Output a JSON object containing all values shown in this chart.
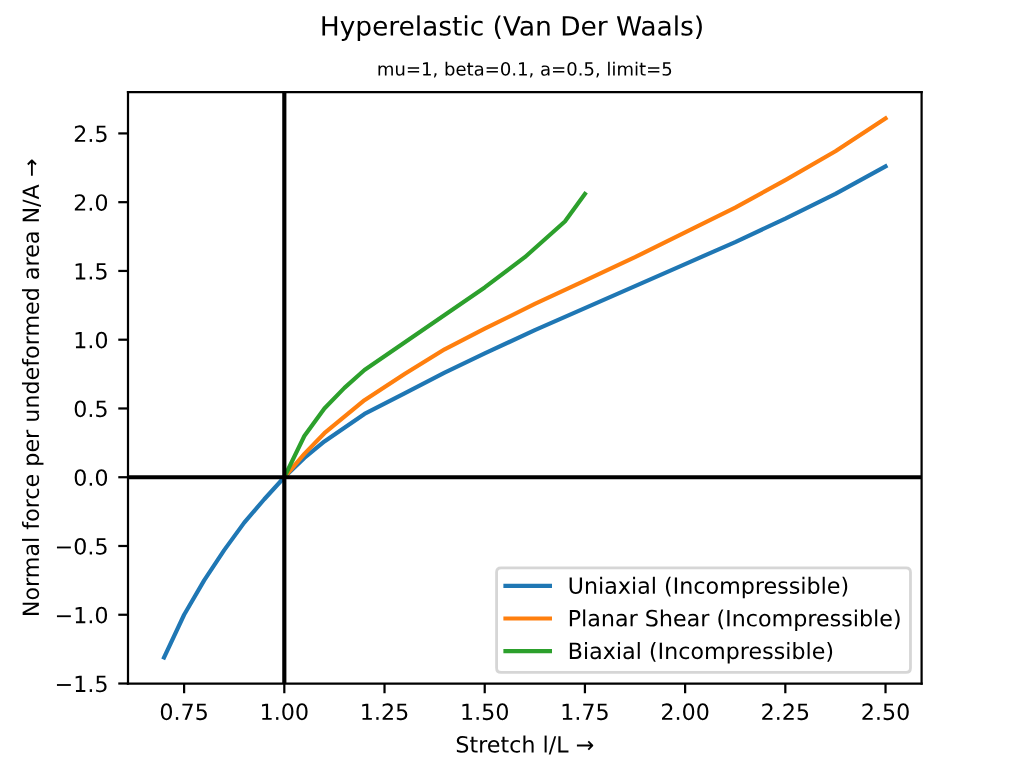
{
  "chart_data": {
    "type": "line",
    "title": "Hyperelastic (Van Der Waals)",
    "subtitle": "mu=1, beta=0.1, a=0.5, limit=5",
    "xlabel": "Stretch l/L →",
    "ylabel": "Normal force per undeformed area N/A →",
    "series": [
      {
        "name": "Uniaxial (Incompressible)",
        "color": "#1f77b4",
        "x": [
          0.7,
          0.75,
          0.8,
          0.85,
          0.9,
          0.95,
          1.0,
          1.05,
          1.1,
          1.2,
          1.3,
          1.4,
          1.5,
          1.625,
          1.75,
          1.875,
          2.0,
          2.125,
          2.25,
          2.375,
          2.5
        ],
        "values": [
          -1.31,
          -1.0,
          -0.75,
          -0.53,
          -0.33,
          -0.16,
          0,
          0.14,
          0.26,
          0.46,
          0.61,
          0.76,
          0.9,
          1.07,
          1.23,
          1.39,
          1.55,
          1.71,
          1.88,
          2.06,
          2.26
        ]
      },
      {
        "name": "Planar Shear (Incompressible)",
        "color": "#ff7f0e",
        "x": [
          1.0,
          1.05,
          1.1,
          1.2,
          1.3,
          1.4,
          1.5,
          1.625,
          1.75,
          1.875,
          2.0,
          2.125,
          2.25,
          2.375,
          2.5
        ],
        "values": [
          0,
          0.17,
          0.32,
          0.56,
          0.75,
          0.93,
          1.08,
          1.26,
          1.43,
          1.6,
          1.78,
          1.96,
          2.16,
          2.37,
          2.61
        ]
      },
      {
        "name": "Biaxial (Incompressible)",
        "color": "#2ca02c",
        "x": [
          1.0,
          1.05,
          1.1,
          1.15,
          1.2,
          1.3,
          1.4,
          1.5,
          1.6,
          1.7,
          1.75
        ],
        "values": [
          0,
          0.3,
          0.5,
          0.65,
          0.78,
          0.98,
          1.18,
          1.38,
          1.6,
          1.86,
          2.06
        ]
      }
    ],
    "xlim": [
      0.61,
      2.59
    ],
    "ylim": [
      -1.5,
      2.8
    ],
    "xticks": [
      0.75,
      {
        "value": 1,
        "label": "1.00"
      },
      1.25,
      {
        "value": 1.5,
        "label": "1.50"
      },
      1.75,
      {
        "value": 2,
        "label": "2.00"
      },
      2.25,
      {
        "value": 2.5,
        "label": "2.50"
      }
    ],
    "yticks": [
      -1.5,
      {
        "value": -1,
        "label": "−1.0"
      },
      -0.5,
      {
        "value": 0,
        "label": "0.0"
      },
      0.5,
      {
        "value": 1,
        "label": "1.0"
      },
      1.5,
      {
        "value": 2,
        "label": "2.0"
      },
      2.5
    ],
    "ref_lines": [
      {
        "axis": "x",
        "value": 1.0,
        "color": "#000000"
      },
      {
        "axis": "y",
        "value": 0.0,
        "color": "#000000"
      }
    ],
    "legend": "bottom right",
    "grid": false
  }
}
